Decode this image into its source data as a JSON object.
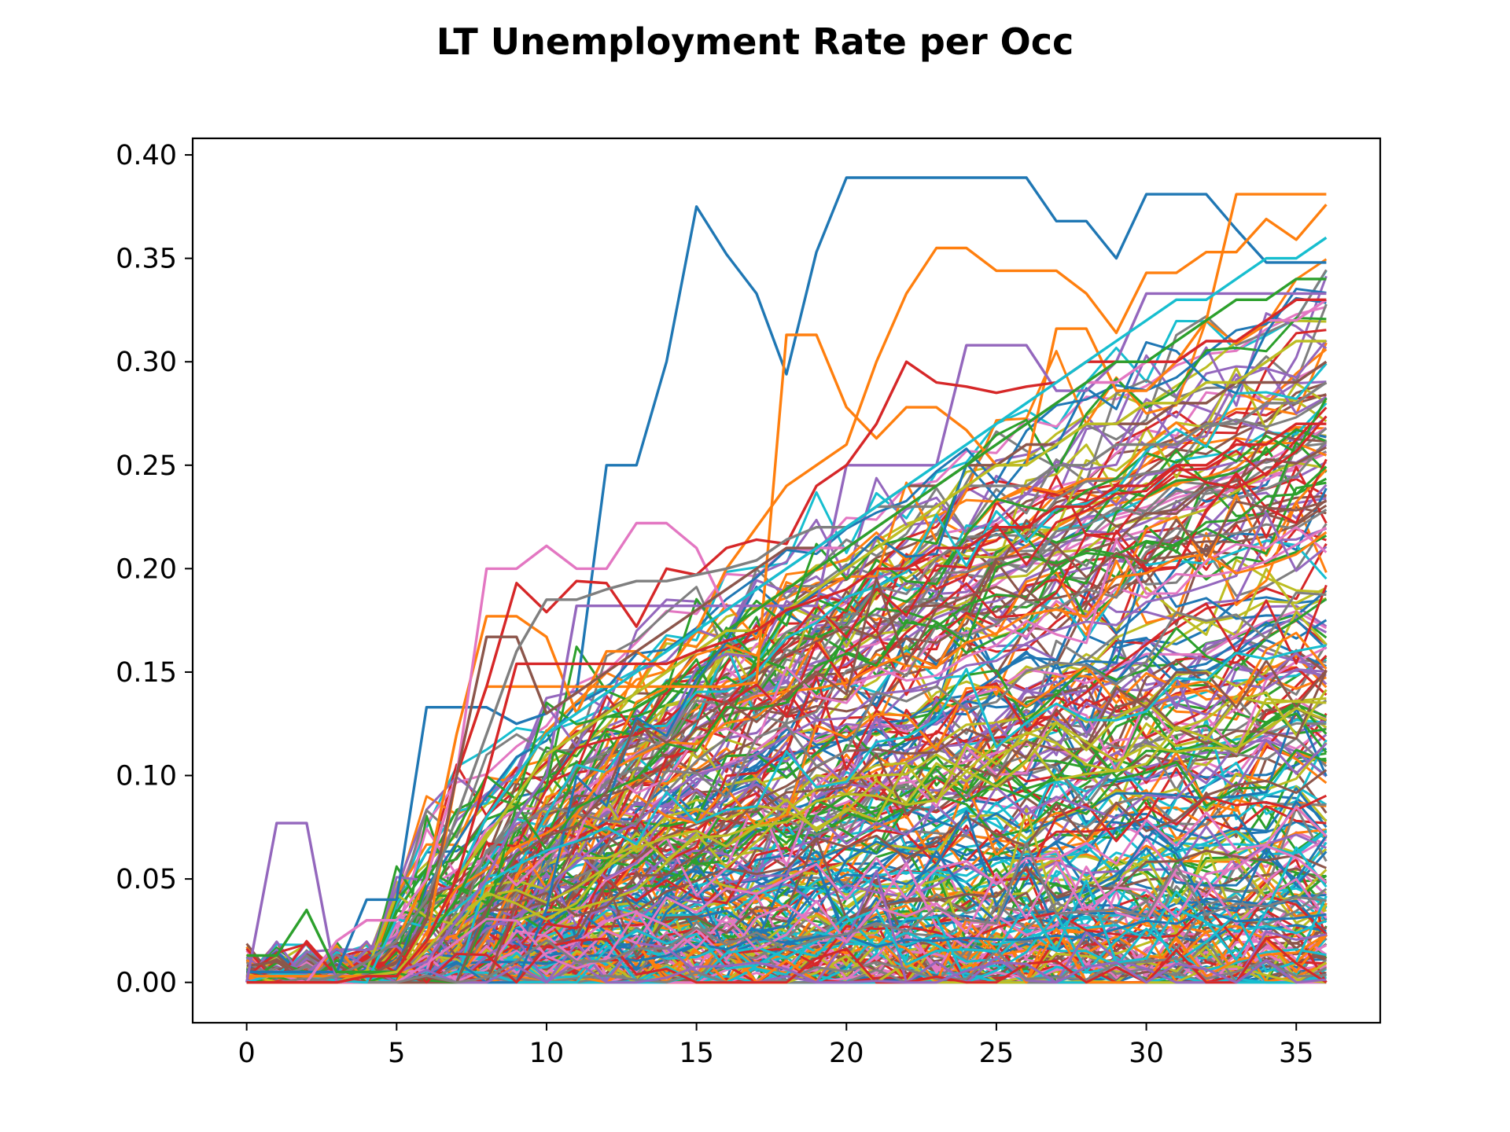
{
  "chart_data": {
    "type": "line",
    "title": "LT Unemployment Rate per Occ",
    "xlabel": "",
    "ylabel": "",
    "xlim": [
      -1.8,
      37.8
    ],
    "ylim": [
      -0.0195,
      0.408
    ],
    "xticks": [
      0,
      5,
      10,
      15,
      20,
      25,
      30,
      35
    ],
    "xtick_labels": [
      "0",
      "5",
      "10",
      "15",
      "20",
      "25",
      "30",
      "35"
    ],
    "yticks": [
      0.0,
      0.05,
      0.1,
      0.15,
      0.2,
      0.25,
      0.3,
      0.35,
      0.4
    ],
    "ytick_labels": [
      "0.00",
      "0.05",
      "0.10",
      "0.15",
      "0.20",
      "0.25",
      "0.30",
      "0.35",
      "0.40"
    ],
    "grid": false,
    "legend": "none",
    "x": [
      0,
      1,
      2,
      3,
      4,
      5,
      6,
      7,
      8,
      9,
      10,
      11,
      12,
      13,
      14,
      15,
      16,
      17,
      18,
      19,
      20,
      21,
      22,
      23,
      24,
      25,
      26,
      27,
      28,
      29,
      30,
      31,
      32,
      33,
      34,
      35,
      36
    ],
    "palette": [
      "#1f77b4",
      "#ff7f0e",
      "#2ca02c",
      "#d62728",
      "#9467bd",
      "#8c564b",
      "#e377c2",
      "#7f7f7f",
      "#bcbd22",
      "#17becf"
    ],
    "series": [
      {
        "color": "#1f77b4",
        "values": [
          0.005,
          0.005,
          0.005,
          0.005,
          0.04,
          0.04,
          0.133,
          0.133,
          0.133,
          0.125,
          0.13,
          0.14,
          0.25,
          0.25,
          0.3,
          0.375,
          0.352,
          0.333,
          0.294,
          0.353,
          0.389,
          0.389,
          0.389,
          0.389,
          0.389,
          0.389,
          0.389,
          0.368,
          0.368,
          0.35,
          0.381,
          0.381,
          0.381,
          0.364,
          0.348,
          0.348,
          0.348
        ]
      },
      {
        "color": "#ff7f0e",
        "values": [
          0.003,
          0.003,
          0.003,
          0.003,
          0.003,
          0.003,
          0.02,
          0.1,
          0.143,
          0.143,
          0.143,
          0.143,
          0.143,
          0.143,
          0.143,
          0.143,
          0.143,
          0.145,
          0.313,
          0.313,
          0.278,
          0.263,
          0.278,
          0.278,
          0.267,
          0.25,
          0.25,
          0.316,
          0.316,
          0.286,
          0.286,
          0.3,
          0.32,
          0.381,
          0.381,
          0.381,
          0.381
        ]
      },
      {
        "color": "#ff7f0e",
        "values": [
          0.0,
          0.0,
          0.0,
          0.003,
          0.01,
          0.02,
          0.05,
          0.12,
          0.177,
          0.177,
          0.167,
          0.13,
          0.16,
          0.16,
          0.15,
          0.17,
          0.2,
          0.22,
          0.24,
          0.25,
          0.26,
          0.3,
          0.333,
          0.355,
          0.355,
          0.344,
          0.344,
          0.344,
          0.333,
          0.314,
          0.343,
          0.343,
          0.353,
          0.353,
          0.369,
          0.359,
          0.376
        ]
      },
      {
        "color": "#9467bd",
        "values": [
          0.0,
          0.077,
          0.077,
          0.0,
          0.003,
          0.005,
          0.01,
          0.03,
          0.05,
          0.08,
          0.1,
          0.182,
          0.182,
          0.182,
          0.182,
          0.182,
          0.182,
          0.182,
          0.182,
          0.182,
          0.25,
          0.25,
          0.25,
          0.25,
          0.308,
          0.308,
          0.308,
          0.286,
          0.286,
          0.3,
          0.333,
          0.333,
          0.333,
          0.333,
          0.333,
          0.333,
          0.333
        ]
      },
      {
        "color": "#e377c2",
        "values": [
          0.0,
          0.0,
          0.0,
          0.02,
          0.03,
          0.03,
          0.05,
          0.1,
          0.2,
          0.2,
          0.211,
          0.2,
          0.2,
          0.222,
          0.222,
          0.21,
          0.18,
          0.19,
          0.2,
          0.21,
          0.21,
          0.22,
          0.23,
          0.24,
          0.25,
          0.26,
          0.27,
          0.28,
          0.29,
          0.29,
          0.3,
          0.3,
          0.31,
          0.31,
          0.32,
          0.32,
          0.33
        ]
      },
      {
        "color": "#d62728",
        "values": [
          0.0,
          0.0,
          0.0,
          0.0,
          0.003,
          0.005,
          0.03,
          0.1,
          0.143,
          0.193,
          0.179,
          0.194,
          0.193,
          0.172,
          0.2,
          0.197,
          0.21,
          0.214,
          0.212,
          0.24,
          0.25,
          0.27,
          0.3,
          0.29,
          0.288,
          0.285,
          0.288,
          0.29,
          0.3,
          0.3,
          0.3,
          0.3,
          0.31,
          0.31,
          0.32,
          0.33,
          0.33
        ]
      },
      {
        "color": "#8c564b",
        "values": [
          0.0,
          0.0,
          0.0,
          0.0,
          0.003,
          0.01,
          0.03,
          0.1,
          0.167,
          0.167,
          0.13,
          0.14,
          0.15,
          0.16,
          0.17,
          0.18,
          0.19,
          0.2,
          0.21,
          0.21,
          0.22,
          0.23,
          0.24,
          0.24,
          0.25,
          0.25,
          0.26,
          0.26,
          0.27,
          0.27,
          0.27,
          0.28,
          0.28,
          0.29,
          0.29,
          0.29,
          0.3
        ]
      },
      {
        "color": "#7f7f7f",
        "values": [
          0.0,
          0.0,
          0.0,
          0.003,
          0.01,
          0.02,
          0.04,
          0.08,
          0.12,
          0.16,
          0.185,
          0.185,
          0.19,
          0.194,
          0.194,
          0.197,
          0.2,
          0.204,
          0.214,
          0.22,
          0.22,
          0.23,
          0.23,
          0.23,
          0.24,
          0.24,
          0.24,
          0.25,
          0.25,
          0.26,
          0.26,
          0.26,
          0.27,
          0.27,
          0.28,
          0.28,
          0.29
        ]
      },
      {
        "color": "#17becf",
        "values": [
          0.0,
          0.0,
          0.0,
          0.0,
          0.003,
          0.005,
          0.02,
          0.05,
          0.08,
          0.1,
          0.12,
          0.13,
          0.14,
          0.15,
          0.16,
          0.17,
          0.18,
          0.19,
          0.2,
          0.21,
          0.22,
          0.23,
          0.24,
          0.25,
          0.26,
          0.27,
          0.28,
          0.29,
          0.3,
          0.31,
          0.32,
          0.33,
          0.33,
          0.34,
          0.35,
          0.35,
          0.36
        ]
      },
      {
        "color": "#2ca02c",
        "values": [
          0.013,
          0.013,
          0.035,
          0.005,
          0.005,
          0.005,
          0.02,
          0.04,
          0.07,
          0.09,
          0.11,
          0.12,
          0.13,
          0.14,
          0.15,
          0.16,
          0.17,
          0.18,
          0.19,
          0.2,
          0.21,
          0.22,
          0.23,
          0.24,
          0.25,
          0.26,
          0.27,
          0.28,
          0.29,
          0.3,
          0.3,
          0.31,
          0.32,
          0.33,
          0.33,
          0.34,
          0.34
        ]
      },
      {
        "color": "#bcbd22",
        "values": [
          0.0,
          0.0,
          0.0,
          0.0,
          0.003,
          0.005,
          0.02,
          0.05,
          0.07,
          0.09,
          0.11,
          0.12,
          0.13,
          0.14,
          0.15,
          0.16,
          0.17,
          0.17,
          0.18,
          0.19,
          0.2,
          0.21,
          0.22,
          0.23,
          0.24,
          0.25,
          0.25,
          0.26,
          0.27,
          0.27,
          0.28,
          0.28,
          0.29,
          0.29,
          0.3,
          0.31,
          0.31
        ]
      },
      {
        "color": "#d62728",
        "values": [
          0.0,
          0.0,
          0.0,
          0.0,
          0.003,
          0.003,
          0.02,
          0.05,
          0.1,
          0.154,
          0.154,
          0.154,
          0.154,
          0.154,
          0.154,
          0.16,
          0.165,
          0.17,
          0.18,
          0.185,
          0.19,
          0.2,
          0.2,
          0.21,
          0.21,
          0.22,
          0.22,
          0.23,
          0.23,
          0.24,
          0.24,
          0.25,
          0.25,
          0.26,
          0.26,
          0.27,
          0.27
        ]
      }
    ]
  }
}
